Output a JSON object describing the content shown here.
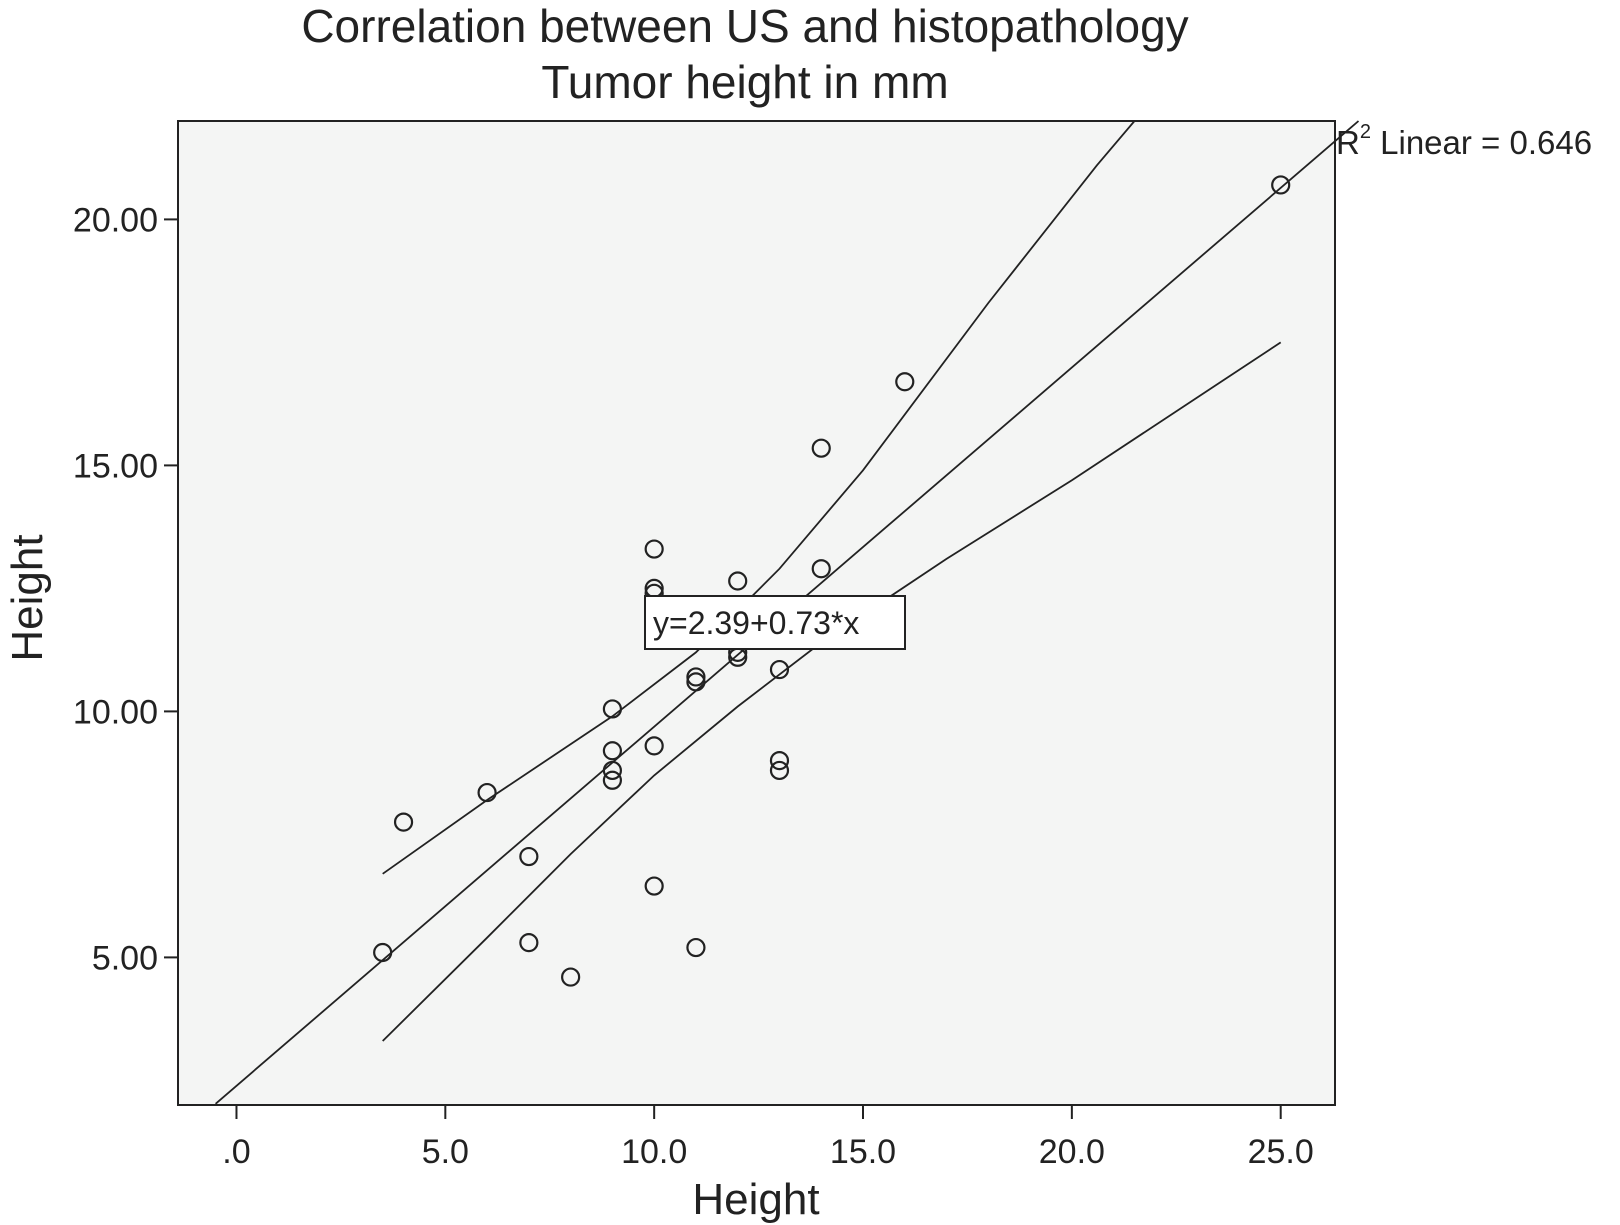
{
  "chart_data": {
    "type": "scatter",
    "title": "Correlation between US and histopathology",
    "subtitle": "Tumor height in mm",
    "xlabel": "Height",
    "ylabel": "Height",
    "xlim": [
      -1.4,
      26.3
    ],
    "ylim": [
      2.0,
      22.0
    ],
    "x_ticks": [
      0,
      5,
      10,
      15,
      20,
      25
    ],
    "x_tick_labels": [
      ".0",
      "5.0",
      "10.0",
      "15.0",
      "20.0",
      "25.0"
    ],
    "y_ticks": [
      5,
      10,
      15,
      20
    ],
    "y_tick_labels": [
      "5.00",
      "10.00",
      "15.00",
      "20.00"
    ],
    "grid": false,
    "background": "#f4f5f4",
    "points": [
      {
        "x": 3.5,
        "y": 5.1
      },
      {
        "x": 4.0,
        "y": 7.75
      },
      {
        "x": 6.0,
        "y": 8.35
      },
      {
        "x": 7.0,
        "y": 7.05
      },
      {
        "x": 7.0,
        "y": 5.3
      },
      {
        "x": 8.0,
        "y": 4.6
      },
      {
        "x": 9.0,
        "y": 10.05
      },
      {
        "x": 9.0,
        "y": 9.2
      },
      {
        "x": 9.0,
        "y": 8.8
      },
      {
        "x": 9.0,
        "y": 8.6
      },
      {
        "x": 10.0,
        "y": 13.3
      },
      {
        "x": 10.0,
        "y": 12.5
      },
      {
        "x": 10.0,
        "y": 12.4
      },
      {
        "x": 10.0,
        "y": 9.3
      },
      {
        "x": 10.0,
        "y": 6.45
      },
      {
        "x": 11.0,
        "y": 10.7
      },
      {
        "x": 11.0,
        "y": 10.6
      },
      {
        "x": 11.0,
        "y": 5.2
      },
      {
        "x": 12.0,
        "y": 12.65
      },
      {
        "x": 12.0,
        "y": 11.2
      },
      {
        "x": 12.0,
        "y": 11.1
      },
      {
        "x": 13.0,
        "y": 10.85
      },
      {
        "x": 13.0,
        "y": 9.0
      },
      {
        "x": 13.0,
        "y": 8.8
      },
      {
        "x": 14.0,
        "y": 15.35
      },
      {
        "x": 14.0,
        "y": 12.9
      },
      {
        "x": 16.0,
        "y": 16.7
      },
      {
        "x": 25.0,
        "y": 20.7
      }
    ],
    "fit": {
      "intercept": 2.39,
      "slope": 0.73,
      "equation_label": "y=2.39+0.73*x",
      "r2_label": "R",
      "r2_sup": "2",
      "r2_rest": " Linear = 0.646"
    },
    "ci_upper": [
      {
        "x": 3.5,
        "y": 6.7
      },
      {
        "x": 6.0,
        "y": 8.2
      },
      {
        "x": 9.0,
        "y": 9.9
      },
      {
        "x": 11.0,
        "y": 11.2
      },
      {
        "x": 13.0,
        "y": 12.9
      },
      {
        "x": 15.0,
        "y": 14.9
      },
      {
        "x": 18.0,
        "y": 18.3
      },
      {
        "x": 20.6,
        "y": 21.1
      },
      {
        "x": 21.5,
        "y": 22.0
      }
    ],
    "ci_lower": [
      {
        "x": 3.5,
        "y": 3.3
      },
      {
        "x": 6.0,
        "y": 5.4
      },
      {
        "x": 8.0,
        "y": 7.1
      },
      {
        "x": 10.0,
        "y": 8.7
      },
      {
        "x": 12.0,
        "y": 10.1
      },
      {
        "x": 14.0,
        "y": 11.4
      },
      {
        "x": 17.0,
        "y": 13.1
      },
      {
        "x": 20.0,
        "y": 14.7
      },
      {
        "x": 25.0,
        "y": 17.5
      }
    ]
  }
}
